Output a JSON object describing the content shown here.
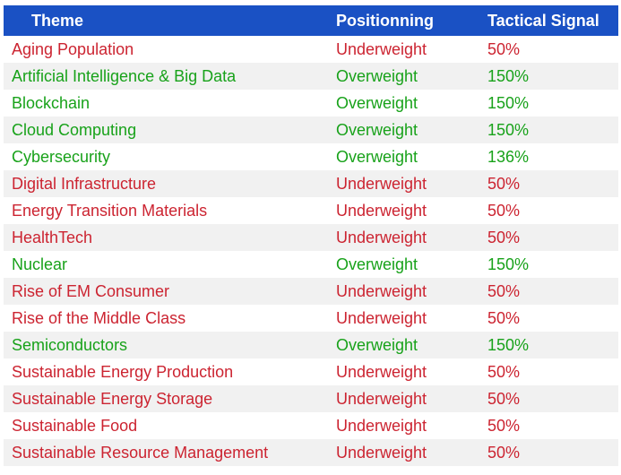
{
  "table": {
    "headers": {
      "theme": "Theme",
      "positioning": "Positionning",
      "signal": "Tactical Signal"
    },
    "colors": {
      "header_bg": "#1a51c4",
      "underweight": "#cc2431",
      "overweight": "#18a21a",
      "stripe": "#f1f1f1"
    },
    "rows": [
      {
        "theme": "Aging Population",
        "positioning": "Underweight",
        "signal": "50%"
      },
      {
        "theme": "Artificial Intelligence & Big Data",
        "positioning": "Overweight",
        "signal": "150%"
      },
      {
        "theme": "Blockchain",
        "positioning": "Overweight",
        "signal": "150%"
      },
      {
        "theme": "Cloud Computing",
        "positioning": "Overweight",
        "signal": "150%"
      },
      {
        "theme": "Cybersecurity",
        "positioning": "Overweight",
        "signal": "136%"
      },
      {
        "theme": "Digital Infrastructure",
        "positioning": "Underweight",
        "signal": "50%"
      },
      {
        "theme": "Energy Transition Materials",
        "positioning": "Underweight",
        "signal": "50%"
      },
      {
        "theme": "HealthTech",
        "positioning": "Underweight",
        "signal": "50%"
      },
      {
        "theme": "Nuclear",
        "positioning": "Overweight",
        "signal": "150%"
      },
      {
        "theme": "Rise of EM Consumer",
        "positioning": "Underweight",
        "signal": "50%"
      },
      {
        "theme": "Rise of the Middle Class",
        "positioning": "Underweight",
        "signal": "50%"
      },
      {
        "theme": "Semiconductors",
        "positioning": "Overweight",
        "signal": "150%"
      },
      {
        "theme": "Sustainable Energy Production",
        "positioning": "Underweight",
        "signal": "50%"
      },
      {
        "theme": "Sustainable Energy Storage",
        "positioning": "Underweight",
        "signal": "50%"
      },
      {
        "theme": "Sustainable Food",
        "positioning": "Underweight",
        "signal": "50%"
      },
      {
        "theme": "Sustainable Resource Management",
        "positioning": "Underweight",
        "signal": "50%"
      }
    ]
  }
}
